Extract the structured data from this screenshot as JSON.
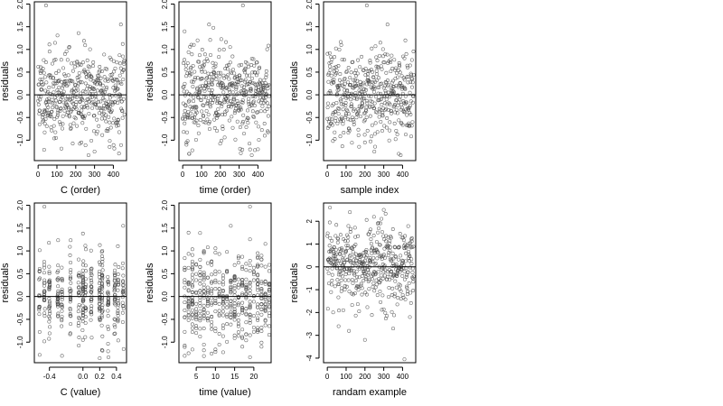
{
  "figure": {
    "background": "#ffffff",
    "axis_color": "#000000",
    "point_color": "#444444",
    "refline_color": "#000000"
  },
  "chart_data": [
    {
      "type": "scatter",
      "xlabel": "C (order)",
      "ylabel": "residuals",
      "xlim": [
        -20,
        470
      ],
      "ylim": [
        -1.45,
        2.05
      ],
      "xticks": [
        0,
        100,
        200,
        300,
        400
      ],
      "xtick_labels": [
        "0",
        "100",
        "200",
        "300",
        "400"
      ],
      "yticks": [
        -1.0,
        -0.5,
        0.0,
        0.5,
        1.0,
        1.5,
        2.0
      ],
      "ytick_labels": [
        "-1.0",
        "-0.5",
        "0.0",
        "0.5",
        "1.0",
        "1.5",
        "2.0"
      ],
      "hline": 0,
      "n_points": 460,
      "seed": 11,
      "spread": 0.48,
      "x_kind": "index",
      "outliers": [
        [
          42,
          1.97
        ],
        [
          215,
          1.36
        ],
        [
          230,
          -1.05
        ],
        [
          95,
          -0.95
        ],
        [
          440,
          1.55
        ],
        [
          300,
          -1.25
        ],
        [
          380,
          -1.15
        ]
      ]
    },
    {
      "type": "scatter",
      "xlabel": "time (order)",
      "ylabel": "residuals",
      "xlim": [
        -20,
        470
      ],
      "ylim": [
        -1.45,
        2.05
      ],
      "xticks": [
        0,
        100,
        200,
        300,
        400
      ],
      "xtick_labels": [
        "0",
        "100",
        "200",
        "300",
        "400"
      ],
      "yticks": [
        -1.0,
        -0.5,
        0.0,
        0.5,
        1.0,
        1.5,
        2.0
      ],
      "ytick_labels": [
        "-1.0",
        "-0.5",
        "0.0",
        "0.5",
        "1.0",
        "1.5",
        "2.0"
      ],
      "hline": 0,
      "n_points": 460,
      "seed": 23,
      "spread": 0.48,
      "x_kind": "index",
      "outliers": [
        [
          320,
          1.97
        ],
        [
          140,
          1.55
        ],
        [
          10,
          1.4
        ],
        [
          20,
          -1.1
        ],
        [
          35,
          -1.3
        ],
        [
          400,
          -1.2
        ]
      ]
    },
    {
      "type": "scatter",
      "xlabel": "sample index",
      "ylabel": "residuals",
      "xlim": [
        -20,
        470
      ],
      "ylim": [
        -1.45,
        2.05
      ],
      "xticks": [
        0,
        100,
        200,
        300,
        400
      ],
      "xtick_labels": [
        "0",
        "100",
        "200",
        "300",
        "400"
      ],
      "yticks": [
        -1.0,
        -0.5,
        0.0,
        0.5,
        1.0,
        1.5,
        2.0
      ],
      "ytick_labels": [
        "-1.0",
        "-0.5",
        "0.0",
        "0.5",
        "1.0",
        "1.5",
        "2.0"
      ],
      "hline": 0,
      "n_points": 460,
      "seed": 37,
      "spread": 0.48,
      "x_kind": "index",
      "outliers": [
        [
          210,
          1.97
        ],
        [
          320,
          1.55
        ],
        [
          415,
          1.2
        ],
        [
          250,
          -1.25
        ],
        [
          380,
          -1.3
        ],
        [
          200,
          -1.05
        ]
      ]
    },
    {
      "type": "scatter",
      "xlabel": "C (value)",
      "ylabel": "residuals",
      "xlim": [
        -0.58,
        0.52
      ],
      "ylim": [
        -1.45,
        2.05
      ],
      "xticks": [
        -0.4,
        0.0,
        0.2,
        0.4
      ],
      "xtick_labels": [
        "-0.4",
        "0.0",
        "0.2",
        "0.4"
      ],
      "yticks": [
        -1.0,
        -0.5,
        0.0,
        0.5,
        1.0,
        1.5,
        2.0
      ],
      "ytick_labels": [
        "-1.0",
        "-0.5",
        "0.0",
        "0.5",
        "1.0",
        "1.5",
        "2.0"
      ],
      "hline": 0,
      "n_points": 420,
      "seed": 53,
      "spread": 0.45,
      "x_kind": "clusters",
      "clusters": [
        -0.52,
        -0.46,
        -0.4,
        -0.3,
        -0.25,
        -0.15,
        -0.05,
        0.0,
        0.03,
        0.1,
        0.2,
        0.23,
        0.3,
        0.38,
        0.42,
        0.48
      ],
      "outliers": [
        [
          -0.46,
          1.97
        ],
        [
          0.0,
          1.38
        ],
        [
          0.48,
          1.55
        ],
        [
          -0.25,
          -1.3
        ],
        [
          0.2,
          -1.35
        ],
        [
          0.3,
          -1.2
        ]
      ]
    },
    {
      "type": "scatter",
      "xlabel": "time (value)",
      "ylabel": "residuals",
      "xlim": [
        0.5,
        24.5
      ],
      "ylim": [
        -1.45,
        2.05
      ],
      "xticks": [
        5,
        10,
        15,
        20
      ],
      "xtick_labels": [
        "5",
        "10",
        "15",
        "20"
      ],
      "yticks": [
        -1.0,
        -0.5,
        0.0,
        0.5,
        1.0,
        1.5,
        2.0
      ],
      "ytick_labels": [
        "-1.0",
        "-0.5",
        "0.0",
        "0.5",
        "1.0",
        "1.5",
        "2.0"
      ],
      "hline": 0,
      "n_points": 460,
      "seed": 71,
      "spread": 0.48,
      "x_kind": "integers",
      "int_range": [
        2,
        24
      ],
      "outliers": [
        [
          19,
          1.97
        ],
        [
          3,
          1.4
        ],
        [
          14,
          1.55
        ],
        [
          2,
          -1.3
        ],
        [
          9,
          -1.25
        ],
        [
          22,
          -1.1
        ]
      ]
    },
    {
      "type": "scatter",
      "xlabel": "randam example",
      "ylabel": "residuals",
      "xlim": [
        -20,
        470
      ],
      "ylim": [
        -4.2,
        2.8
      ],
      "xticks": [
        0,
        100,
        200,
        300,
        400
      ],
      "xtick_labels": [
        "0",
        "100",
        "200",
        "300",
        "400"
      ],
      "yticks": [
        -4,
        -3,
        -2,
        -1,
        0,
        1,
        2
      ],
      "ytick_labels": [
        "-4",
        "-3",
        "-2",
        "-1",
        "0",
        "1",
        "2"
      ],
      "hline": 0,
      "n_points": 460,
      "seed": 97,
      "spread": 0.95,
      "x_kind": "index",
      "outliers": [
        [
          410,
          -4.05
        ],
        [
          200,
          -3.2
        ],
        [
          300,
          2.5
        ],
        [
          120,
          2.4
        ],
        [
          60,
          -2.6
        ],
        [
          350,
          -2.7
        ]
      ]
    }
  ]
}
